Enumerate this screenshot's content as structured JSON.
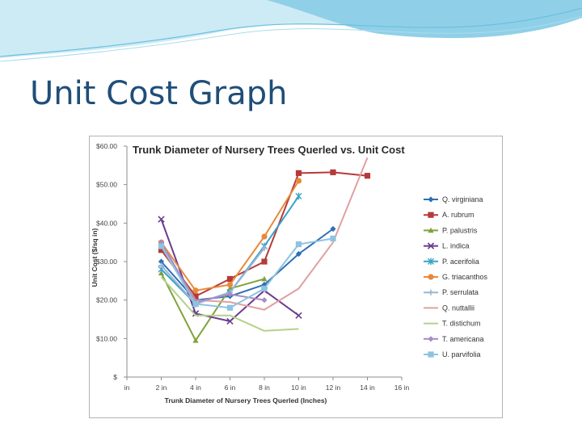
{
  "slide": {
    "title": "Unit Cost Graph"
  },
  "chart_data": {
    "type": "line",
    "title": "Trunk Diameter of Nursery Trees Querled vs. Unit Cost",
    "xlabel": "Trunk Diameter of Nursery Trees Querled (Inches)",
    "ylabel": "Unit Cost ($/sq in)",
    "x_ticks": [
      0,
      2,
      4,
      6,
      8,
      10,
      12,
      14,
      16
    ],
    "x_tick_labels": [
      "in",
      "2 in",
      "4 in",
      "6 in",
      "8 in",
      "10 in",
      "12 in",
      "14 in",
      "16 in"
    ],
    "xlim": [
      0,
      16
    ],
    "y_ticks": [
      0,
      10,
      20,
      30,
      40,
      50,
      60
    ],
    "y_tick_labels": [
      "$",
      "$10.00",
      "$20.00",
      "$30.00",
      "$40.00",
      "$50.00",
      "$60.00"
    ],
    "ylim": [
      0,
      60
    ],
    "grid": false,
    "legend_position": "right",
    "series": [
      {
        "name": "Q. virginiana",
        "color": "#2e6fb5",
        "marker": "diamond",
        "x": [
          2,
          4,
          6,
          8,
          10,
          12
        ],
        "y": [
          30,
          20,
          21,
          24,
          32,
          38.5
        ]
      },
      {
        "name": "A. rubrum",
        "color": "#b53a3a",
        "marker": "square",
        "x": [
          2,
          4,
          6,
          8,
          10,
          12,
          14
        ],
        "y": [
          33,
          21,
          25.5,
          30,
          53,
          53.2,
          52.3
        ]
      },
      {
        "name": "P. palustris",
        "color": "#7fa33a",
        "marker": "triangle",
        "x": [
          2,
          4,
          6,
          8
        ],
        "y": [
          27,
          9.5,
          23,
          25.5
        ]
      },
      {
        "name": "L. indica",
        "color": "#6a3d8f",
        "marker": "x",
        "x": [
          2,
          4,
          6,
          8,
          10
        ],
        "y": [
          41,
          16.5,
          14.5,
          22.5,
          16
        ]
      },
      {
        "name": "P. acerifolia",
        "color": "#39a3c6",
        "marker": "star",
        "x": [
          2,
          4,
          6,
          8,
          10
        ],
        "y": [
          28,
          19,
          22,
          34,
          47
        ]
      },
      {
        "name": "G. triacanthos",
        "color": "#e8893a",
        "marker": "circle",
        "x": [
          2,
          4,
          6,
          8,
          10
        ],
        "y": [
          35,
          22.5,
          24,
          36.5,
          51
        ]
      },
      {
        "name": "P. serrulata",
        "color": "#9cb4d6",
        "marker": "plus",
        "x": [
          2,
          4,
          6,
          8
        ],
        "y": [
          29,
          19,
          22,
          33.5
        ]
      },
      {
        "name": "Q. nuttallii",
        "color": "#e0a0a0",
        "marker": "none",
        "x": [
          2,
          4,
          6,
          8,
          10,
          12,
          14
        ],
        "y": [
          34,
          20,
          19.5,
          17.5,
          23,
          35,
          57
        ]
      },
      {
        "name": "T. distichum",
        "color": "#b5d18a",
        "marker": "none",
        "x": [
          2,
          4,
          6,
          8,
          10
        ],
        "y": [
          26,
          16,
          16,
          12,
          12.5
        ]
      },
      {
        "name": "T. americana",
        "color": "#a58cc8",
        "marker": "diamond",
        "x": [
          2,
          4,
          6,
          8
        ],
        "y": [
          35,
          19.5,
          21.5,
          20
        ]
      },
      {
        "name": "U. parvifolia",
        "color": "#8ec3e0",
        "marker": "square",
        "x": [
          2,
          4,
          6,
          8,
          10,
          12
        ],
        "y": [
          34,
          19,
          18,
          23,
          34.5,
          36
        ]
      }
    ]
  }
}
